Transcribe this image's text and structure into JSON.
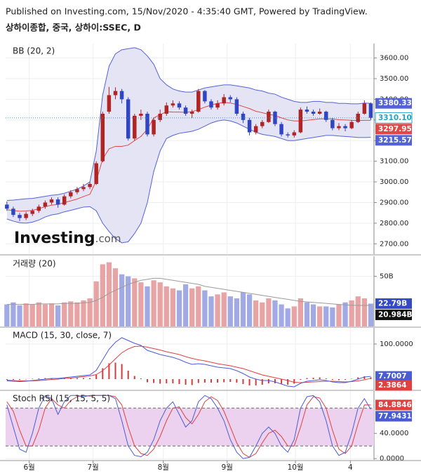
{
  "header": {
    "published": "Published on Investing.com, 15/Nov/2020 - 4:35:40 GMT, Powered by TradingView.",
    "symbol": "상하이종합, 중국, 상하이:SSEC, D",
    "watermark": "Investing",
    "watermark_suffix": ".com"
  },
  "chart_data": [
    {
      "type": "candlestick",
      "title": "BB (20, 2)",
      "ylim": [
        2650,
        3670
      ],
      "yticks": [
        {
          "value": 2700,
          "label": "2700.00"
        },
        {
          "value": 2800,
          "label": "2800.00"
        },
        {
          "value": 2900,
          "label": "2900.00"
        },
        {
          "value": 3000,
          "label": "3000.00"
        },
        {
          "value": 3100,
          "label": "3100.00"
        },
        {
          "value": 3200,
          "label": "3200.00"
        },
        {
          "value": 3300,
          "label": "3300.00"
        },
        {
          "value": 3400,
          "label": "3400.00"
        },
        {
          "value": 3500,
          "label": "3500.00"
        },
        {
          "value": 3600,
          "label": "3600.00"
        }
      ],
      "up_color": "#b02424",
      "down_color": "#2f45c5",
      "last_color": "#1fa3c8",
      "open": [
        2890,
        2870,
        2840,
        2825,
        2845,
        2860,
        2880,
        2900,
        2915,
        2890,
        2930,
        2950,
        2965,
        2975,
        2990,
        3100,
        3340,
        3420,
        3440,
        3400,
        3210,
        3320,
        3330,
        3230,
        3300,
        3330,
        3370,
        3380,
        3360,
        3330,
        3340,
        3440,
        3390,
        3360,
        3380,
        3410,
        3400,
        3330,
        3300,
        3240,
        3270,
        3290,
        3340,
        3280,
        3230,
        3225,
        3240,
        3350,
        3340,
        3330,
        3340,
        3300,
        3260,
        3270,
        3260,
        3290,
        3330,
        3380
      ],
      "high": [
        2905,
        2880,
        2850,
        2855,
        2870,
        2890,
        2910,
        2925,
        2925,
        2940,
        2960,
        2975,
        2990,
        3000,
        3100,
        3340,
        3460,
        3458,
        3450,
        3410,
        3330,
        3350,
        3340,
        3310,
        3350,
        3385,
        3395,
        3390,
        3370,
        3350,
        3450,
        3445,
        3400,
        3395,
        3425,
        3420,
        3410,
        3340,
        3310,
        3280,
        3300,
        3350,
        3345,
        3290,
        3240,
        3250,
        3360,
        3365,
        3350,
        3355,
        3345,
        3310,
        3285,
        3280,
        3300,
        3340,
        3395,
        3385
      ],
      "low": [
        2860,
        2830,
        2810,
        2815,
        2835,
        2850,
        2870,
        2890,
        2875,
        2885,
        2920,
        2940,
        2955,
        2965,
        2985,
        3095,
        3330,
        3400,
        3380,
        3200,
        3200,
        3300,
        3220,
        3220,
        3290,
        3320,
        3360,
        3350,
        3320,
        3310,
        3335,
        3380,
        3350,
        3350,
        3370,
        3385,
        3320,
        3285,
        3225,
        3230,
        3260,
        3285,
        3270,
        3220,
        3215,
        3215,
        3235,
        3330,
        3320,
        3325,
        3290,
        3250,
        3250,
        3245,
        3255,
        3285,
        3325,
        3300
      ],
      "close": [
        2870,
        2840,
        2825,
        2845,
        2860,
        2880,
        2900,
        2915,
        2890,
        2930,
        2950,
        2965,
        2975,
        2990,
        3090,
        3330,
        3420,
        3440,
        3400,
        3210,
        3320,
        3330,
        3230,
        3300,
        3330,
        3370,
        3380,
        3360,
        3330,
        3340,
        3440,
        3390,
        3360,
        3380,
        3410,
        3400,
        3330,
        3300,
        3240,
        3270,
        3290,
        3340,
        3280,
        3230,
        3225,
        3240,
        3350,
        3340,
        3330,
        3340,
        3300,
        3260,
        3270,
        3260,
        3290,
        3330,
        3380,
        3310.1
      ],
      "close_label": "3310.10",
      "upper": {
        "color": "#5462d8",
        "values": [
          2910,
          2912,
          2915,
          2918,
          2920,
          2925,
          2930,
          2935,
          2938,
          2945,
          2955,
          2965,
          2980,
          3000,
          3150,
          3420,
          3560,
          3620,
          3640,
          3645,
          3650,
          3640,
          3610,
          3570,
          3500,
          3470,
          3450,
          3440,
          3435,
          3435,
          3445,
          3455,
          3460,
          3465,
          3470,
          3470,
          3465,
          3460,
          3455,
          3445,
          3440,
          3430,
          3425,
          3410,
          3400,
          3390,
          3385,
          3385,
          3390,
          3390,
          3385,
          3385,
          3380,
          3380,
          3378,
          3378,
          3382,
          3380.33
        ]
      },
      "middle": {
        "color": "#e04848",
        "values": [
          2865,
          2861,
          2858,
          2859,
          2862,
          2870,
          2880,
          2887,
          2891,
          2900,
          2908,
          2917,
          2929,
          2940,
          3005,
          3110,
          3160,
          3172,
          3172,
          3178,
          3200,
          3220,
          3255,
          3310,
          3325,
          3340,
          3338,
          3338,
          3337,
          3340,
          3350,
          3362,
          3372,
          3380,
          3385,
          3382,
          3375,
          3365,
          3355,
          3342,
          3335,
          3327,
          3322,
          3310,
          3300,
          3295,
          3295,
          3298,
          3302,
          3305,
          3305,
          3305,
          3301,
          3300,
          3298,
          3297,
          3298,
          3297.95
        ]
      },
      "lower": {
        "color": "#5462d8",
        "values": [
          2820,
          2810,
          2802,
          2800,
          2805,
          2815,
          2830,
          2840,
          2845,
          2855,
          2862,
          2870,
          2878,
          2880,
          2860,
          2800,
          2760,
          2725,
          2705,
          2710,
          2750,
          2800,
          2900,
          3050,
          3150,
          3210,
          3225,
          3235,
          3240,
          3245,
          3255,
          3270,
          3285,
          3295,
          3300,
          3295,
          3285,
          3270,
          3255,
          3240,
          3230,
          3225,
          3220,
          3210,
          3200,
          3200,
          3205,
          3210,
          3215,
          3220,
          3225,
          3225,
          3222,
          3220,
          3218,
          3215,
          3215,
          3215.57
        ]
      },
      "fill_color": "#e4e4f4"
    },
    {
      "type": "volume",
      "title": "거래량 (20)",
      "ylim": [
        0,
        70
      ],
      "yticks": [
        {
          "value": 50,
          "label": "50B"
        }
      ],
      "up_color": "#e8a4a4",
      "down_color": "#a2aae6",
      "last_color": "#3549c8",
      "values": [
        22,
        24,
        21,
        23,
        22,
        24,
        22,
        23,
        21,
        24,
        25,
        24,
        26,
        28,
        45,
        62,
        64,
        58,
        52,
        50,
        48,
        44,
        40,
        46,
        44,
        40,
        38,
        36,
        42,
        38,
        40,
        36,
        30,
        32,
        34,
        30,
        28,
        34,
        32,
        26,
        24,
        28,
        26,
        22,
        18,
        20,
        28,
        24,
        22,
        20,
        20,
        19,
        22,
        24,
        26,
        30,
        28,
        22.79
      ],
      "last_label": "22.79B",
      "ma": {
        "color": "#9a9a9a",
        "values": [
          22,
          22,
          22,
          22,
          22,
          22.5,
          22.5,
          22.5,
          22.5,
          23,
          23,
          23,
          23.5,
          24,
          26,
          29,
          33,
          36,
          39,
          42,
          44,
          46,
          47,
          48,
          48,
          47,
          46,
          45,
          44,
          43,
          42,
          40,
          39,
          38,
          37,
          36,
          35,
          34,
          33,
          32,
          31,
          30,
          29,
          28,
          27,
          26,
          25,
          24.5,
          24,
          23.5,
          23,
          22.5,
          22,
          21.5,
          21.2,
          21,
          21,
          20.984
        ],
        "last_label": "20.984B",
        "label_color": "#111111"
      }
    },
    {
      "type": "macd",
      "title": "MACD (15, 30, close, 7)",
      "ylim": [
        -30,
        146
      ],
      "yticks": [
        {
          "value": 100,
          "label": "100.0000"
        }
      ],
      "macd": {
        "color": "#4a5bd6",
        "values": [
          -5,
          -6,
          -7,
          -6,
          -4,
          -2,
          0,
          2,
          2,
          4,
          6,
          8,
          10,
          12,
          25,
          55,
          85,
          105,
          118,
          110,
          102,
          96,
          82,
          76,
          70,
          66,
          62,
          56,
          48,
          42,
          44,
          42,
          38,
          34,
          32,
          30,
          24,
          16,
          6,
          0,
          -4,
          -4,
          -8,
          -14,
          -20,
          -22,
          -12,
          -6,
          -4,
          -2,
          -4,
          -8,
          -10,
          -10,
          -6,
          0,
          6,
          7.7007
        ]
      },
      "signal": {
        "color": "#e04040",
        "values": [
          -3,
          -4,
          -5,
          -5,
          -5,
          -4,
          -3,
          -1,
          0,
          2,
          3,
          5,
          7,
          9,
          13,
          24,
          40,
          58,
          75,
          86,
          93,
          94,
          91,
          87,
          83,
          78,
          74,
          70,
          64,
          59,
          55,
          52,
          48,
          44,
          41,
          38,
          34,
          30,
          24,
          18,
          12,
          8,
          4,
          0,
          -4,
          -9,
          -10,
          -9,
          -8,
          -7,
          -6,
          -6,
          -7,
          -8,
          -7,
          -5,
          -2,
          2.3864
        ]
      },
      "histogram": {
        "color": "#d83a3a",
        "values": [
          -2,
          -2,
          -2,
          -1,
          1,
          2,
          3,
          3,
          2,
          2,
          3,
          3,
          3,
          3,
          12,
          31,
          45,
          47,
          43,
          24,
          9,
          2,
          -9,
          -11,
          -13,
          -12,
          -12,
          -14,
          -16,
          -17,
          -11,
          -10,
          -10,
          -10,
          -9,
          -8,
          -10,
          -14,
          -18,
          -18,
          -16,
          -12,
          -12,
          -14,
          -16,
          -13,
          -2,
          3,
          4,
          5,
          2,
          -2,
          -3,
          -2,
          1,
          5,
          8,
          5.3143
        ]
      }
    },
    {
      "type": "stoch",
      "title": "Stoch RSI (15, 15, 5, 5)",
      "ylim": [
        -2,
        107
      ],
      "yticks": [
        {
          "value": 0,
          "label": "0.0000"
        },
        {
          "value": 40,
          "label": "40.0000"
        }
      ],
      "band": [
        20,
        80
      ],
      "band_color": "#ecd2ee",
      "k": {
        "color": "#4a5bd6",
        "values": [
          85,
          50,
          15,
          10,
          40,
          80,
          100,
          95,
          70,
          90,
          100,
          100,
          98,
          100,
          100,
          100,
          100,
          95,
          60,
          20,
          5,
          3,
          10,
          30,
          60,
          80,
          90,
          70,
          50,
          60,
          90,
          100,
          95,
          80,
          60,
          30,
          10,
          0,
          2,
          20,
          40,
          50,
          40,
          20,
          10,
          30,
          80,
          98,
          100,
          90,
          60,
          20,
          5,
          10,
          40,
          80,
          95,
          77.9431
        ]
      },
      "d": {
        "color": "#e04040",
        "values": [
          90,
          75,
          45,
          20,
          20,
          45,
          80,
          95,
          85,
          80,
          92,
          98,
          100,
          99,
          100,
          100,
          100,
          98,
          85,
          50,
          20,
          8,
          5,
          15,
          35,
          60,
          80,
          82,
          65,
          55,
          70,
          90,
          98,
          92,
          75,
          50,
          25,
          8,
          2,
          8,
          25,
          40,
          45,
          35,
          20,
          20,
          50,
          85,
          98,
          96,
          80,
          45,
          15,
          8,
          20,
          55,
          85,
          84.8846
        ]
      },
      "xlim": [
        -0.2,
        57.5
      ],
      "xticks": [
        {
          "value": 3.5,
          "label": "6월"
        },
        {
          "value": 13.5,
          "label": "7월"
        },
        {
          "value": 24.5,
          "label": "8월"
        },
        {
          "value": 34.5,
          "label": "9월"
        },
        {
          "value": 45.2,
          "label": "10월"
        },
        {
          "value": 53.8,
          "label": "4"
        }
      ]
    }
  ]
}
